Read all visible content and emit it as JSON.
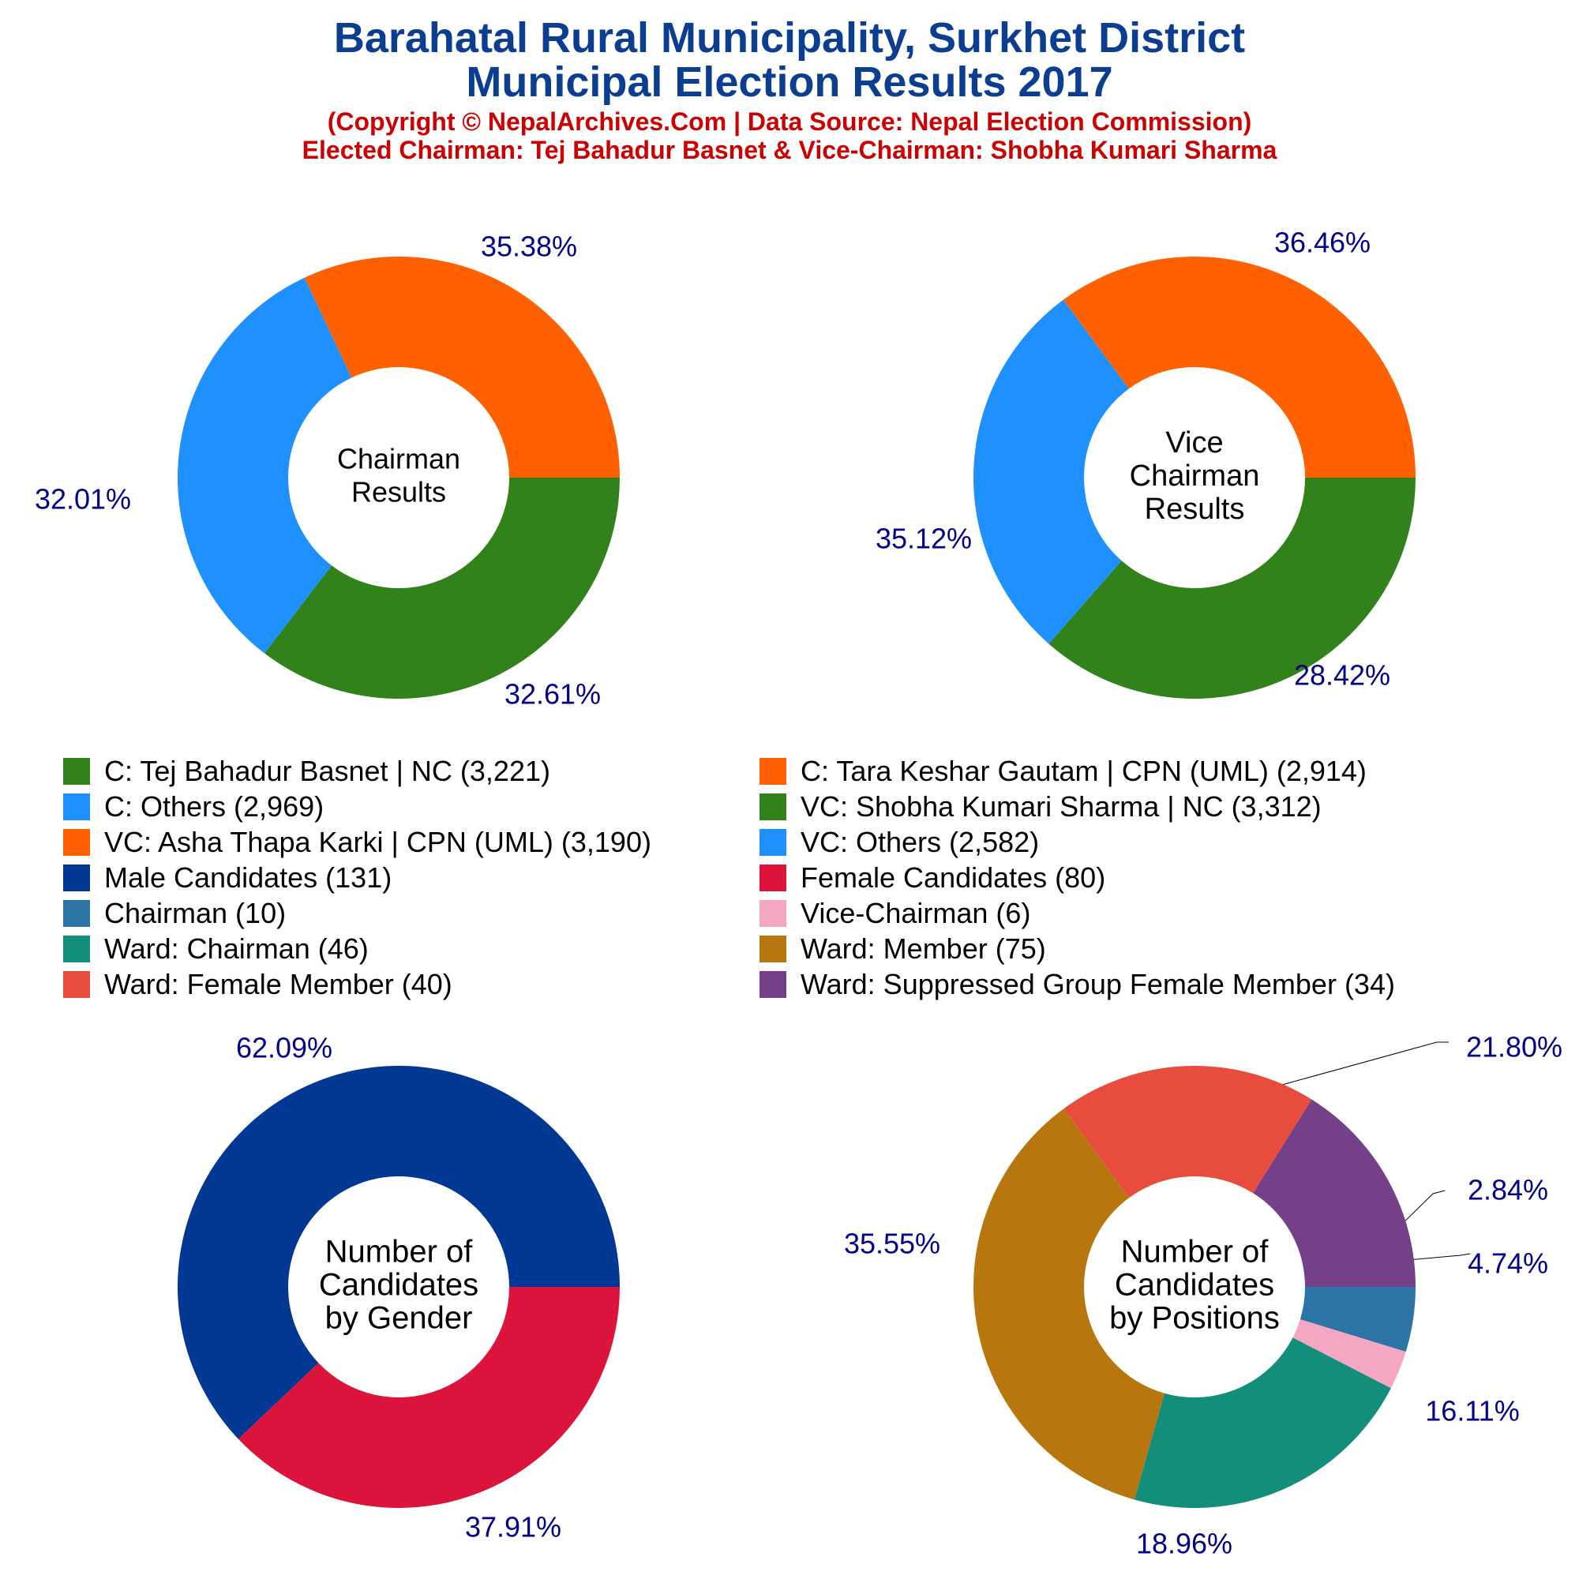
{
  "header": {
    "title_line1": "Barahatal Rural Municipality, Surkhet District",
    "title_line2": "Municipal Election Results 2017",
    "subtitle_line1": "(Copyright © NepalArchives.Com | Data Source: Nepal Election Commission)",
    "subtitle_line2": "Elected Chairman: Tej Bahadur Basnet & Vice-Chairman: Shobha Kumari Sharma"
  },
  "legend": [
    {
      "label": "C: Tej Bahadur Basnet | NC (3,221)",
      "color": "#32821B"
    },
    {
      "label": "C: Tara Keshar Gautam | CPN (UML) (2,914)",
      "color": "#FF6100"
    },
    {
      "label": "C: Others (2,969)",
      "color": "#1E90FF"
    },
    {
      "label": "VC: Shobha Kumari Sharma | NC (3,312)",
      "color": "#32821B"
    },
    {
      "label": "VC: Asha Thapa Karki | CPN (UML) (3,190)",
      "color": "#FF6100"
    },
    {
      "label": "VC: Others (2,582)",
      "color": "#1E90FF"
    },
    {
      "label": "Male Candidates (131)",
      "color": "#003893"
    },
    {
      "label": "Female Candidates (80)",
      "color": "#DC143C"
    },
    {
      "label": "Chairman (10)",
      "color": "#2C73A6"
    },
    {
      "label": "Vice-Chairman (6)",
      "color": "#F4A6C2"
    },
    {
      "label": "Ward: Chairman (46)",
      "color": "#138E7A"
    },
    {
      "label": "Ward: Member (75)",
      "color": "#B8770E"
    },
    {
      "label": "Ward: Female Member (40)",
      "color": "#E84C3D"
    },
    {
      "label": "Ward: Suppressed Group Female Member (34)",
      "color": "#744189"
    }
  ],
  "chart_data": [
    {
      "type": "pie",
      "center_label": [
        "Chairman",
        "Results"
      ],
      "slices": [
        {
          "name": "C: Tej Bahadur Basnet | NC",
          "value": 3221,
          "percent_label": "35.38%",
          "color": "#32821B"
        },
        {
          "name": "C: Others",
          "value": 2969,
          "percent_label": "32.61%",
          "color": "#1E90FF"
        },
        {
          "name": "C: Tara Keshar Gautam | CPN (UML)",
          "value": 2914,
          "percent_label": "32.01%",
          "color": "#FF6100"
        }
      ]
    },
    {
      "type": "pie",
      "center_label": [
        "Vice",
        "Chairman",
        "Results"
      ],
      "slices": [
        {
          "name": "VC: Shobha Kumari Sharma | NC",
          "value": 3312,
          "percent_label": "36.46%",
          "color": "#32821B"
        },
        {
          "name": "VC: Others",
          "value": 2582,
          "percent_label": "28.42%",
          "color": "#1E90FF"
        },
        {
          "name": "VC: Asha Thapa Karki | CPN (UML)",
          "value": 3190,
          "percent_label": "35.12%",
          "color": "#FF6100"
        }
      ]
    },
    {
      "type": "pie",
      "center_label": [
        "Number of",
        "Candidates",
        "by Gender"
      ],
      "slices": [
        {
          "name": "Male Candidates",
          "value": 131,
          "percent_label": "62.09%",
          "color": "#003893"
        },
        {
          "name": "Female Candidates",
          "value": 80,
          "percent_label": "37.91%",
          "color": "#DC143C"
        }
      ]
    },
    {
      "type": "pie",
      "center_label": [
        "Number of",
        "Candidates",
        "by Positions"
      ],
      "slices": [
        {
          "name": "Chairman",
          "value": 10,
          "percent_label": "4.74%",
          "color": "#2C73A6"
        },
        {
          "name": "Vice-Chairman",
          "value": 6,
          "percent_label": "2.84%",
          "color": "#F4A6C2"
        },
        {
          "name": "Ward: Chairman",
          "value": 46,
          "percent_label": "21.80%",
          "color": "#138E7A"
        },
        {
          "name": "Ward: Member",
          "value": 75,
          "percent_label": "35.55%",
          "color": "#B8770E"
        },
        {
          "name": "Ward: Female Member",
          "value": 40,
          "percent_label": "18.96%",
          "color": "#E84C3D"
        },
        {
          "name": "Ward: Suppressed Group Female Member",
          "value": 34,
          "percent_label": "16.11%",
          "color": "#744189"
        }
      ]
    }
  ]
}
